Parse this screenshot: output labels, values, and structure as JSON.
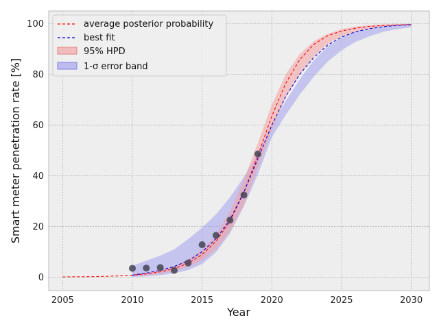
{
  "chart_data": {
    "type": "line",
    "xlabel": "Year",
    "ylabel": "Smart meter penetration rate [%]",
    "xlim": [
      2004,
      2031.3
    ],
    "ylim": [
      -5.3,
      105
    ],
    "x_ticks": [
      2005,
      2010,
      2015,
      2020,
      2025,
      2030
    ],
    "y_ticks": [
      0,
      20,
      40,
      60,
      80,
      100
    ],
    "grid": true,
    "legend_position": "top-left",
    "colors": {
      "background": "#eeeeee",
      "avg_line": "#ff0000",
      "best_fit": "#0000dd",
      "hpd_fill": "#f4a0a0",
      "sigma_fill": "#9999ee",
      "points": "#444455"
    },
    "series": [
      {
        "name": "average posterior probability",
        "kind": "line",
        "x": [
          2005,
          2006,
          2007,
          2008,
          2009,
          2010,
          2011,
          2012,
          2013,
          2014,
          2015,
          2016,
          2017,
          2018,
          2019,
          2020,
          2021,
          2022,
          2023,
          2024,
          2025,
          2026,
          2027,
          2028,
          2029,
          2030
        ],
        "y": [
          0.1,
          0.15,
          0.2,
          0.3,
          0.5,
          0.8,
          1.3,
          2.1,
          3.4,
          5.5,
          8.9,
          14.2,
          22.0,
          33.5,
          48.0,
          63.5,
          76.5,
          85.8,
          91.8,
          95.2,
          97.1,
          98.2,
          98.9,
          99.3,
          99.5,
          99.7
        ]
      },
      {
        "name": "best fit",
        "kind": "line",
        "x": [
          2010,
          2011,
          2012,
          2013,
          2014,
          2015,
          2016,
          2017,
          2018,
          2019,
          2020,
          2021,
          2022,
          2023,
          2024,
          2025,
          2026,
          2027,
          2028,
          2029,
          2030
        ],
        "y": [
          0.8,
          1.6,
          2.7,
          4.2,
          6.5,
          10.0,
          15.2,
          22.7,
          33.6,
          46.7,
          60.0,
          71.3,
          80.0,
          86.6,
          91.5,
          94.7,
          96.8,
          98.0,
          98.8,
          99.3,
          99.6
        ]
      },
      {
        "name": "95% HPD",
        "kind": "band",
        "x": [
          2010,
          2011,
          2012,
          2013,
          2014,
          2015,
          2016,
          2017,
          2018,
          2019,
          2020,
          2021,
          2022,
          2023,
          2024,
          2025,
          2026,
          2027,
          2028,
          2029,
          2030
        ],
        "lower": [
          0.4,
          0.8,
          1.4,
          2.4,
          4.0,
          6.7,
          11.0,
          18.0,
          28.5,
          43.0,
          58.0,
          71.0,
          80.0,
          87.0,
          92.0,
          95.0,
          96.8,
          98.0,
          98.8,
          99.2,
          99.5
        ],
        "upper": [
          1.2,
          1.8,
          2.9,
          4.5,
          7.0,
          10.8,
          16.5,
          26.0,
          38.5,
          53.0,
          68.0,
          80.0,
          88.0,
          93.0,
          96.0,
          97.8,
          98.8,
          99.4,
          99.7,
          99.8,
          99.9
        ]
      },
      {
        "name": "1-σ error band",
        "kind": "band",
        "x": [
          2010,
          2011,
          2012,
          2013,
          2014,
          2015,
          2016,
          2017,
          2018,
          2019,
          2020,
          2021,
          2022,
          2023,
          2024,
          2025,
          2026,
          2027,
          2028,
          2029,
          2030
        ],
        "lower": [
          0.1,
          0.3,
          0.8,
          1.5,
          2.8,
          5.2,
          9.8,
          17.3,
          28.0,
          40.5,
          55.2,
          64.0,
          72.0,
          79.0,
          85.0,
          89.5,
          92.8,
          95.0,
          96.8,
          97.8,
          98.6
        ],
        "upper": [
          4.5,
          6.5,
          8.5,
          11.0,
          15.0,
          19.5,
          24.8,
          31.5,
          39.5,
          49.0,
          60.0,
          69.5,
          78.0,
          85.5,
          91.0,
          94.5,
          96.8,
          98.0,
          99.0,
          99.5,
          99.8
        ]
      },
      {
        "name": "",
        "kind": "points",
        "x": [
          2010,
          2011,
          2012,
          2013,
          2014,
          2015,
          2016,
          2017,
          2018,
          2019
        ],
        "y": [
          3.5,
          3.6,
          3.8,
          2.7,
          5.6,
          12.8,
          16.5,
          22.5,
          32.4,
          48.6
        ]
      }
    ]
  }
}
